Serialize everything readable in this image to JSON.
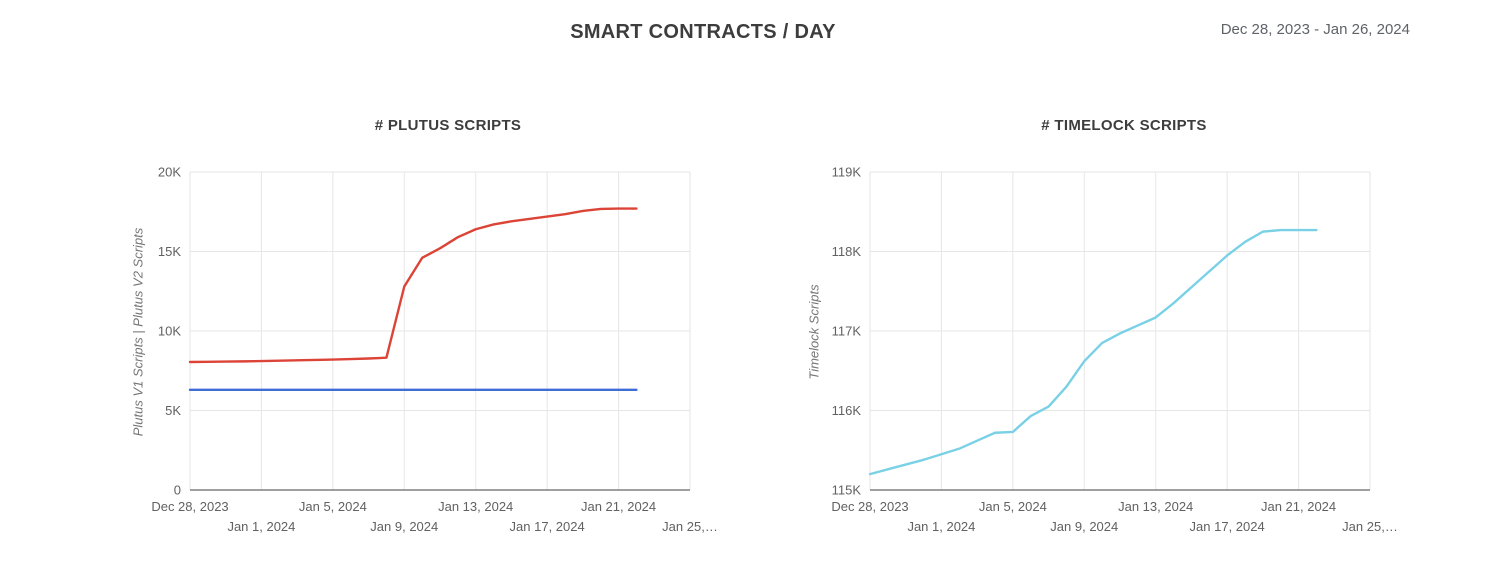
{
  "header": {
    "title": "SMART CONTRACTS / DAY",
    "date_range": "Dec 28, 2023 - Jan 26, 2024"
  },
  "colors": {
    "grid": "#e6e6e6",
    "axis": "#424242",
    "tick": "#616161",
    "title": "#3d3d3d",
    "ylabel": "#757575",
    "plutus_v1_blue": "#3e6dd8",
    "plutus_v2_red": "#db4437",
    "timelock_cyan": "#7ad1e6"
  },
  "chart_data": [
    {
      "type": "line",
      "title": "# PLUTUS SCRIPTS",
      "ylabel": "Plutus V1 Scripts | Plutus V2 Scripts",
      "legend": "none",
      "grid": true,
      "ylim": [
        0,
        20000
      ],
      "y_ticks": [
        {
          "value": 0,
          "label": "0"
        },
        {
          "value": 5000,
          "label": "5K"
        },
        {
          "value": 10000,
          "label": "10K"
        },
        {
          "value": 15000,
          "label": "15K"
        },
        {
          "value": 20000,
          "label": "20K"
        }
      ],
      "x_index_max": 28,
      "x_ticks": [
        {
          "index": 0,
          "label": "Dec 28, 2023",
          "row": 0
        },
        {
          "index": 4,
          "label": "Jan 1, 2024",
          "row": 1
        },
        {
          "index": 8,
          "label": "Jan 5, 2024",
          "row": 0
        },
        {
          "index": 12,
          "label": "Jan 9, 2024",
          "row": 1
        },
        {
          "index": 16,
          "label": "Jan 13, 2024",
          "row": 0
        },
        {
          "index": 20,
          "label": "Jan 17, 2024",
          "row": 1
        },
        {
          "index": 24,
          "label": "Jan 21, 2024",
          "row": 0
        },
        {
          "index": 28,
          "label": "Jan 25,…",
          "row": 1
        }
      ],
      "x_dates": [
        "Dec 28, 2023",
        "Dec 29, 2023",
        "Dec 30, 2023",
        "Dec 31, 2023",
        "Jan 1, 2024",
        "Jan 2, 2024",
        "Jan 3, 2024",
        "Jan 4, 2024",
        "Jan 5, 2024",
        "Jan 6, 2024",
        "Jan 7, 2024",
        "Jan 8, 2024",
        "Jan 9, 2024",
        "Jan 10, 2024",
        "Jan 11, 2024",
        "Jan 12, 2024",
        "Jan 13, 2024",
        "Jan 14, 2024",
        "Jan 15, 2024",
        "Jan 16, 2024",
        "Jan 17, 2024",
        "Jan 18, 2024",
        "Jan 19, 2024",
        "Jan 20, 2024",
        "Jan 21, 2024",
        "Jan 22, 2024"
      ],
      "series": [
        {
          "name": "Plutus V1 Scripts",
          "color": "#3e6dd8",
          "values": [
            6300,
            6300,
            6300,
            6300,
            6300,
            6300,
            6300,
            6300,
            6300,
            6300,
            6300,
            6300,
            6300,
            6300,
            6300,
            6300,
            6300,
            6300,
            6300,
            6300,
            6300,
            6300,
            6300,
            6300,
            6300,
            6300
          ]
        },
        {
          "name": "Plutus V2 Scripts",
          "color": "#db4437",
          "values": [
            8050,
            8060,
            8075,
            8090,
            8110,
            8130,
            8155,
            8180,
            8205,
            8235,
            8270,
            8320,
            12800,
            14600,
            15200,
            15900,
            16400,
            16700,
            16900,
            17050,
            17200,
            17350,
            17550,
            17680,
            17700,
            17700
          ]
        }
      ]
    },
    {
      "type": "line",
      "title": "# TIMELOCK SCRIPTS",
      "ylabel": "Timelock Scripts",
      "legend": "none",
      "grid": true,
      "ylim": [
        115000,
        119000
      ],
      "y_ticks": [
        {
          "value": 115000,
          "label": "115K"
        },
        {
          "value": 116000,
          "label": "116K"
        },
        {
          "value": 117000,
          "label": "117K"
        },
        {
          "value": 118000,
          "label": "118K"
        },
        {
          "value": 119000,
          "label": "119K"
        }
      ],
      "x_index_max": 28,
      "x_ticks": [
        {
          "index": 0,
          "label": "Dec 28, 2023",
          "row": 0
        },
        {
          "index": 4,
          "label": "Jan 1, 2024",
          "row": 1
        },
        {
          "index": 8,
          "label": "Jan 5, 2024",
          "row": 0
        },
        {
          "index": 12,
          "label": "Jan 9, 2024",
          "row": 1
        },
        {
          "index": 16,
          "label": "Jan 13, 2024",
          "row": 0
        },
        {
          "index": 20,
          "label": "Jan 17, 2024",
          "row": 1
        },
        {
          "index": 24,
          "label": "Jan 21, 2024",
          "row": 0
        },
        {
          "index": 28,
          "label": "Jan 25,…",
          "row": 1
        }
      ],
      "x_dates": [
        "Dec 28, 2023",
        "Dec 29, 2023",
        "Dec 30, 2023",
        "Dec 31, 2023",
        "Jan 1, 2024",
        "Jan 2, 2024",
        "Jan 3, 2024",
        "Jan 4, 2024",
        "Jan 5, 2024",
        "Jan 6, 2024",
        "Jan 7, 2024",
        "Jan 8, 2024",
        "Jan 9, 2024",
        "Jan 10, 2024",
        "Jan 11, 2024",
        "Jan 12, 2024",
        "Jan 13, 2024",
        "Jan 14, 2024",
        "Jan 15, 2024",
        "Jan 16, 2024",
        "Jan 17, 2024",
        "Jan 18, 2024",
        "Jan 19, 2024",
        "Jan 20, 2024",
        "Jan 21, 2024",
        "Jan 22, 2024"
      ],
      "series": [
        {
          "name": "Timelock Scripts",
          "color": "#7ad1e6",
          "values": [
            115200,
            115260,
            115320,
            115380,
            115450,
            115520,
            115620,
            115720,
            115730,
            115930,
            116050,
            116300,
            116620,
            116850,
            116970,
            117070,
            117170,
            117350,
            117550,
            117750,
            117950,
            118120,
            118250,
            118270,
            118270,
            118270
          ]
        }
      ]
    }
  ]
}
